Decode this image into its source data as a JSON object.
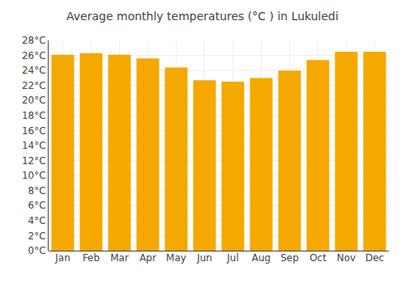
{
  "chart_data": {
    "type": "bar",
    "title": "Average monthly temperatures (°C ) in Lukuledi",
    "categories": [
      "Jan",
      "Feb",
      "Mar",
      "Apr",
      "May",
      "Jun",
      "Jul",
      "Aug",
      "Sep",
      "Oct",
      "Nov",
      "Dec"
    ],
    "values": [
      26.1,
      26.3,
      26.1,
      25.6,
      24.4,
      22.7,
      22.5,
      23.0,
      24.0,
      25.4,
      26.5,
      26.5
    ],
    "color": "#F5A800",
    "ylim": [
      0,
      28
    ],
    "yticks": [
      {
        "value": 0,
        "label": "0°C"
      },
      {
        "value": 2,
        "label": "2°C"
      },
      {
        "value": 4,
        "label": "4°C"
      },
      {
        "value": 6,
        "label": "6°C"
      },
      {
        "value": 8,
        "label": "8°C"
      },
      {
        "value": 10,
        "label": "10°C"
      },
      {
        "value": 12,
        "label": "12°C"
      },
      {
        "value": 14,
        "label": "14°C"
      },
      {
        "value": 16,
        "label": "16°C"
      },
      {
        "value": 18,
        "label": "18°C"
      },
      {
        "value": 20,
        "label": "20°C"
      },
      {
        "value": 22,
        "label": "22°C"
      },
      {
        "value": 24,
        "label": "24°C"
      },
      {
        "value": 26,
        "label": "26°C"
      },
      {
        "value": 28,
        "label": "28°C"
      }
    ],
    "grid": true
  }
}
